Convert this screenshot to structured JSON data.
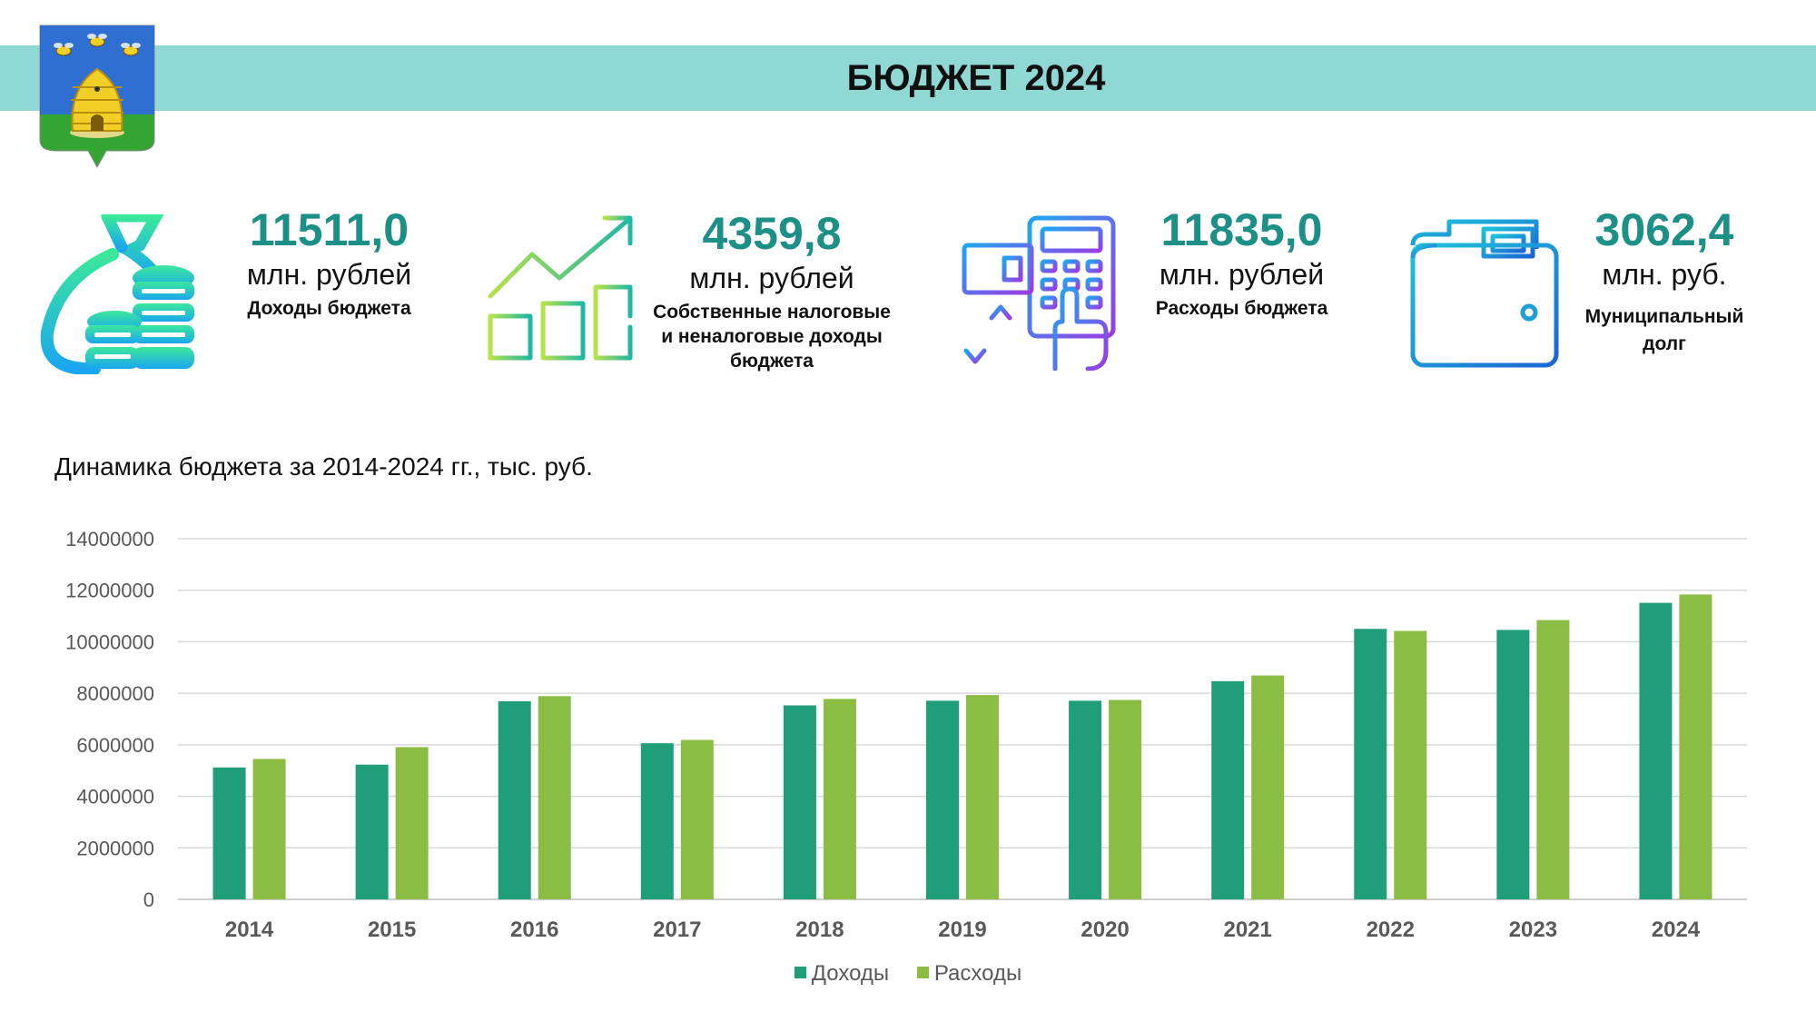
{
  "header": {
    "title": "БЮДЖЕТ 2024"
  },
  "emblem": {
    "icon": "coat-of-arms-beehive-icon"
  },
  "kpis": [
    {
      "value": "11511,0",
      "unit": "млн. рублей",
      "label": "Доходы бюджета",
      "icon": "money-bag-coins-icon"
    },
    {
      "value": "4359,8",
      "unit": "млн. рублей",
      "label_lines": [
        "Собственные налоговые",
        "и неналоговые доходы",
        "бюджета"
      ],
      "icon": "growth-bars-arrow-icon"
    },
    {
      "value": "11835,0",
      "unit": "млн. рублей",
      "label": "Расходы бюджета",
      "icon": "calculator-hand-icon"
    },
    {
      "value": "3062,4",
      "unit": "млн. руб.",
      "label_lines": [
        "Муниципальный",
        "долг"
      ],
      "icon": "wallet-icon"
    }
  ],
  "chart_subtitle": "Динамика бюджета за 2014-2024 гг., тыс. руб.",
  "colors": {
    "income": "#1f9e78",
    "expense": "#8bbd45",
    "header_band": "#8fd8d4",
    "kpi_value": "#1c8f87"
  },
  "chart_data": {
    "type": "bar",
    "categories": [
      "2014",
      "2015",
      "2016",
      "2017",
      "2018",
      "2019",
      "2020",
      "2021",
      "2022",
      "2023",
      "2024"
    ],
    "series": [
      {
        "name": "Доходы",
        "values": [
          5120000,
          5230000,
          7690000,
          6060000,
          7530000,
          7710000,
          7710000,
          8470000,
          10500000,
          10460000,
          11511000
        ]
      },
      {
        "name": "Расходы",
        "values": [
          5450000,
          5910000,
          7890000,
          6190000,
          7780000,
          7930000,
          7740000,
          8690000,
          10420000,
          10840000,
          11835000
        ]
      }
    ],
    "yticks": [
      "0",
      "2000000",
      "4000000",
      "6000000",
      "8000000",
      "10000000",
      "12000000",
      "14000000"
    ],
    "ylim": [
      0,
      14000000
    ],
    "grid": true,
    "legend": "bottom-center"
  }
}
